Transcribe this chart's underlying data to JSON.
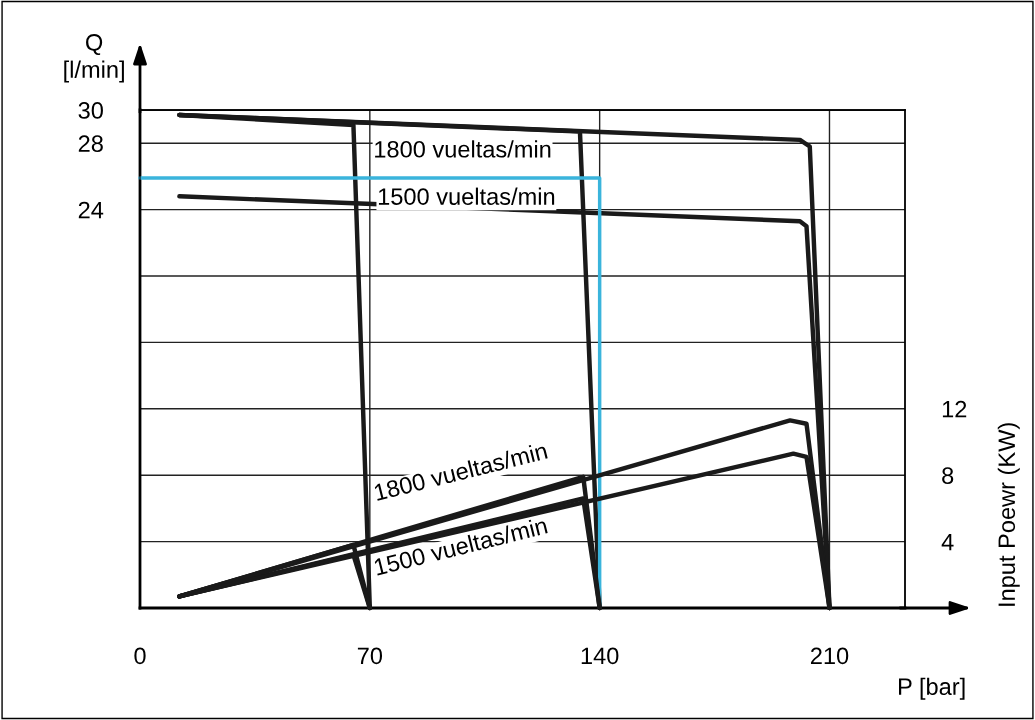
{
  "chart_data": {
    "type": "line",
    "xlabel": "P [bar]",
    "ylabel": "Q\n[l/min]",
    "y2label": "Input Poewr (KW)",
    "xlim": [
      0,
      233
    ],
    "xticks": [
      0,
      70,
      140,
      210
    ],
    "ylim": [
      0,
      30
    ],
    "yticks": [
      {
        "value": 4,
        "label": null
      },
      {
        "value": 8,
        "label": null
      },
      {
        "value": 12,
        "label": null
      },
      {
        "value": 16,
        "label": null
      },
      {
        "value": 20,
        "label": null
      },
      24,
      28,
      30
    ],
    "y2lim": [
      0,
      30
    ],
    "y2ticks": [
      4,
      8,
      12
    ],
    "grid": true,
    "line_style": "solid",
    "marker": "none",
    "series": [
      {
        "color": "#1a1a1a",
        "x": [
          12,
          65,
          70
        ],
        "values": [
          29.7,
          29.1,
          0
        ]
      },
      {
        "color": "#1a1a1a",
        "x": [
          12,
          134,
          140
        ],
        "values": [
          29.7,
          28.7,
          0
        ]
      },
      {
        "color": "#1a1a1a",
        "x": [
          12,
          201,
          204,
          210
        ],
        "values": [
          29.7,
          28.2,
          27.8,
          0
        ]
      },
      {
        "color": "#1a1a1a",
        "x": [
          12,
          201,
          203,
          210
        ],
        "values": [
          24.8,
          23.3,
          23.0,
          0
        ]
      },
      {
        "color": "#1a1a1a",
        "axis": "y2",
        "x": [
          12,
          65,
          70
        ],
        "values": [
          0.7,
          3.8,
          0
        ]
      },
      {
        "color": "#1a1a1a",
        "axis": "y2",
        "x": [
          12,
          65,
          70
        ],
        "values": [
          0.7,
          3.2,
          0
        ]
      },
      {
        "color": "#1a1a1a",
        "axis": "y2",
        "x": [
          12,
          135,
          140
        ],
        "values": [
          0.7,
          7.9,
          0
        ]
      },
      {
        "color": "#1a1a1a",
        "axis": "y2",
        "x": [
          12,
          135,
          140
        ],
        "values": [
          0.7,
          6.6,
          0
        ]
      },
      {
        "color": "#1a1a1a",
        "axis": "y2",
        "x": [
          12,
          198,
          203,
          210
        ],
        "values": [
          0.7,
          11.3,
          11.1,
          0
        ]
      },
      {
        "color": "#1a1a1a",
        "axis": "y2",
        "x": [
          12,
          199,
          203,
          210
        ],
        "values": [
          0.7,
          9.3,
          9.1,
          0
        ]
      },
      {
        "color": "#3ab4dc",
        "x": [
          0,
          140,
          140
        ],
        "values": [
          25.9,
          25.9,
          0
        ]
      }
    ],
    "annotations": [
      "1800 vueltas/min",
      "1500 vueltas/min",
      "1800 vueltas/min",
      "1500 vueltas/min"
    ]
  }
}
